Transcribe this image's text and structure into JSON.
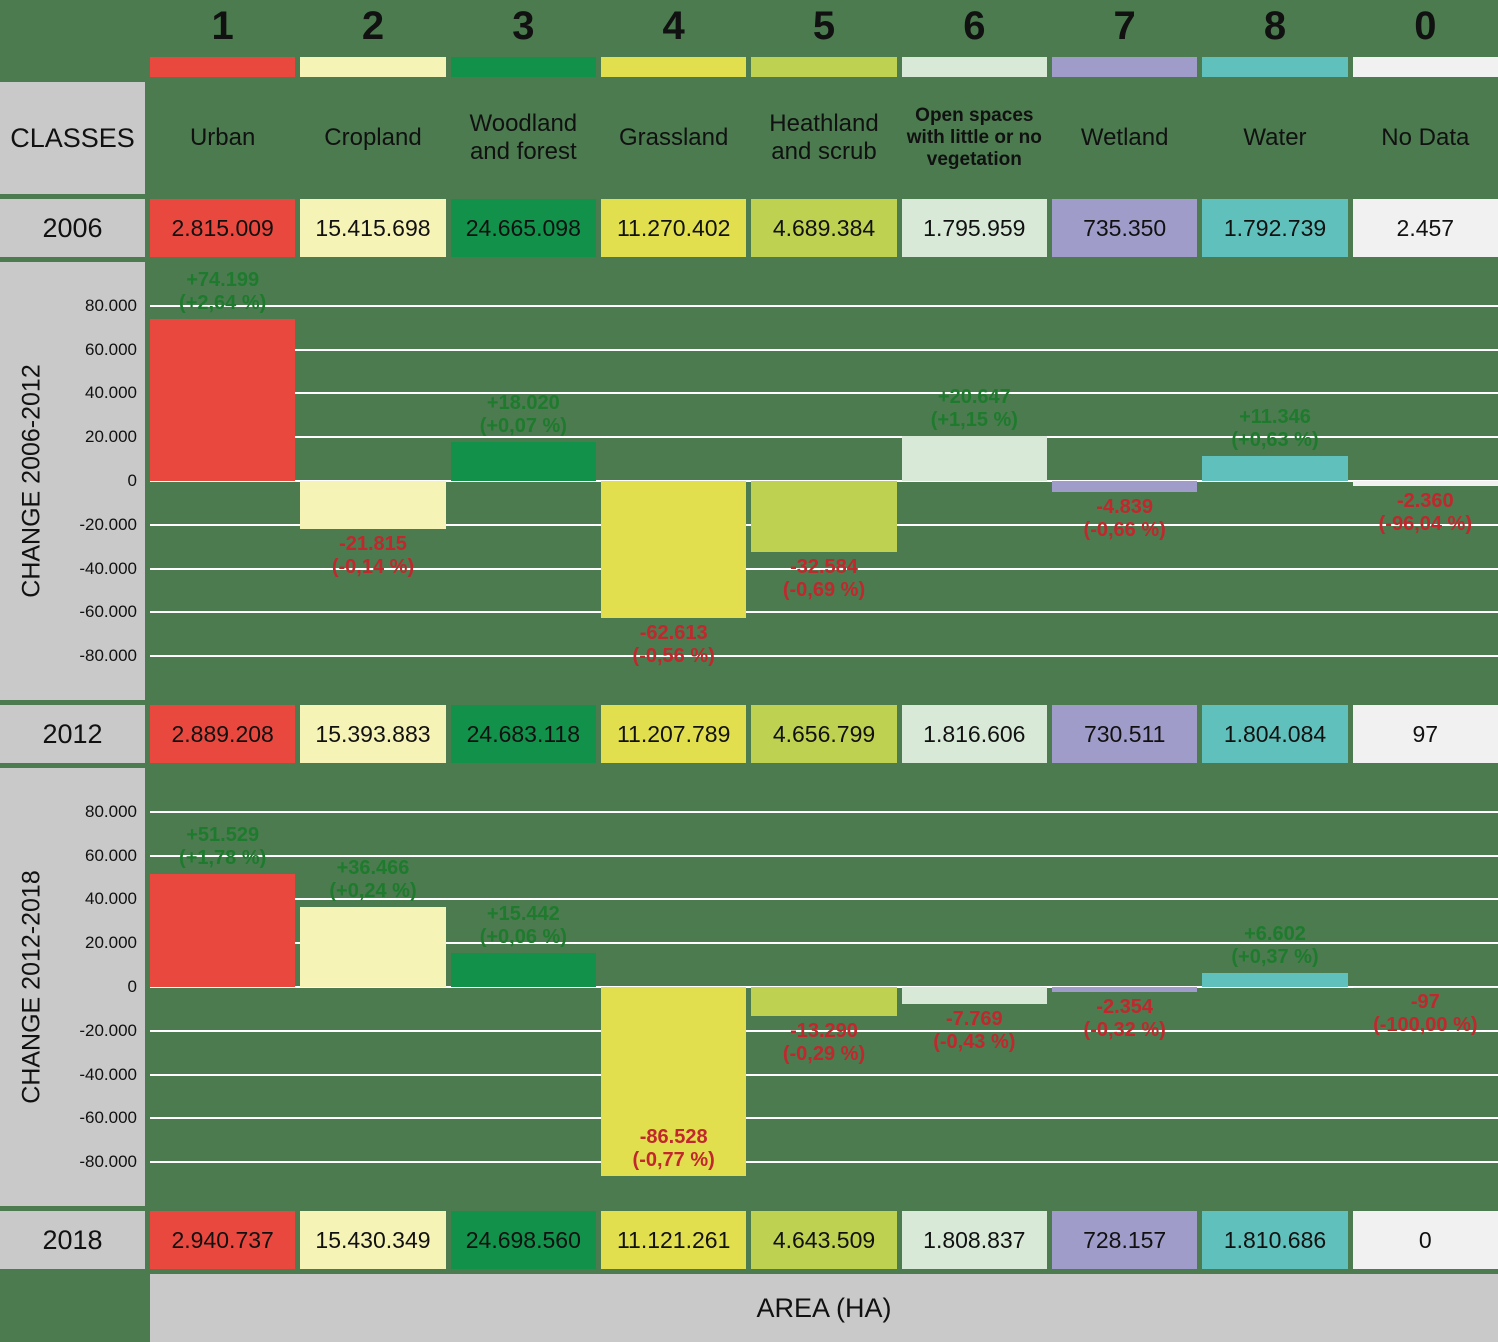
{
  "colors": {
    "background": "#4b7b4f",
    "panel_gray": "#c9c9c9",
    "gridline": "#ffffff",
    "positive_text": "#1e7b2d",
    "negative_text": "#c1272d",
    "text_dark": "#111111"
  },
  "labels": {
    "classes": "CLASSES",
    "area": "AREA (HA)"
  },
  "columns": [
    {
      "num": "1",
      "name": "Urban",
      "color": "#e9483e"
    },
    {
      "num": "2",
      "name": "Cropland",
      "color": "#f6f3b7"
    },
    {
      "num": "3",
      "name": "Woodland and forest",
      "color": "#11914a"
    },
    {
      "num": "4",
      "name": "Grassland",
      "color": "#e2df4e"
    },
    {
      "num": "5",
      "name": "Heathland and scrub",
      "color": "#bfd150"
    },
    {
      "num": "6",
      "name": "Open spaces with little or no vegetation",
      "color": "#d8ead7"
    },
    {
      "num": "7",
      "name": "Wetland",
      "color": "#9f9cca"
    },
    {
      "num": "8",
      "name": "Water",
      "color": "#60c1bc"
    },
    {
      "num": "0",
      "name": "No Data",
      "color": "#f1f1f1"
    }
  ],
  "rows": [
    {
      "year": "2006",
      "values": [
        "2.815.009",
        "15.415.698",
        "24.665.098",
        "11.270.402",
        "4.689.384",
        "1.795.959",
        "735.350",
        "1.792.739",
        "2.457"
      ]
    },
    {
      "year": "2012",
      "values": [
        "2.889.208",
        "15.393.883",
        "24.683.118",
        "11.207.789",
        "4.656.799",
        "1.816.606",
        "730.511",
        "1.804.084",
        "97"
      ]
    },
    {
      "year": "2018",
      "values": [
        "2.940.737",
        "15.430.349",
        "24.698.560",
        "11.121.261",
        "4.643.509",
        "1.808.837",
        "728.157",
        "1.810.686",
        "0"
      ]
    }
  ],
  "chart_data": [
    {
      "type": "bar",
      "title": "CHANGE 2006-2012",
      "categories": [
        "Urban",
        "Cropland",
        "Woodland and forest",
        "Grassland",
        "Heathland and scrub",
        "Open spaces with little or no vegetation",
        "Wetland",
        "Water",
        "No Data"
      ],
      "values": [
        74199,
        -21815,
        18020,
        -62613,
        -32584,
        20647,
        -4839,
        11346,
        -2360
      ],
      "value_labels": [
        "+74.199",
        "-21.815",
        "+18.020",
        "-62.613",
        "-32.584",
        "+20.647",
        "-4.839",
        "+11.346",
        "-2.360"
      ],
      "pct_labels": [
        "(+2,64 %)",
        "(-0,14 %)",
        "(+0,07 %)",
        "(-0,56 %)",
        "(-0,69 %)",
        "(+1,15 %)",
        "(-0,66 %)",
        "(+0,63 %)",
        "(-96,04 %)"
      ],
      "unit": "ha",
      "ylim": [
        -100000,
        100000
      ],
      "yticks": [
        80000,
        60000,
        40000,
        20000,
        0,
        -20000,
        -40000,
        -60000,
        -80000
      ],
      "ytick_labels": [
        "80.000",
        "60.000",
        "40.000",
        "20.000",
        "0",
        "-20.000",
        "-40.000",
        "-60.000",
        "-80.000"
      ],
      "grid": true,
      "legend": false
    },
    {
      "type": "bar",
      "title": "CHANGE 2012-2018",
      "categories": [
        "Urban",
        "Cropland",
        "Woodland and forest",
        "Grassland",
        "Heathland and scrub",
        "Open spaces with little or no vegetation",
        "Wetland",
        "Water",
        "No Data"
      ],
      "values": [
        51529,
        36466,
        15442,
        -86528,
        -13290,
        -7769,
        -2354,
        6602,
        -97
      ],
      "value_labels": [
        "+51.529",
        "+36.466",
        "+15.442",
        "-86.528",
        "-13.290",
        "-7.769",
        "-2.354",
        "+6.602",
        "-97"
      ],
      "pct_labels": [
        "(+1,78 %)",
        "(+0,24 %)",
        "(+0,06 %)",
        "(-0,77 %)",
        "(-0,29 %)",
        "(-0,43 %)",
        "(-0,32 %)",
        "(+0,37 %)",
        "(-100,00 %)"
      ],
      "unit": "ha",
      "ylim": [
        -100000,
        100000
      ],
      "yticks": [
        80000,
        60000,
        40000,
        20000,
        0,
        -20000,
        -40000,
        -60000,
        -80000
      ],
      "ytick_labels": [
        "80.000",
        "60.000",
        "40.000",
        "20.000",
        "0",
        "-20.000",
        "-40.000",
        "-60.000",
        "-80.000"
      ],
      "grid": true,
      "legend": false
    }
  ]
}
